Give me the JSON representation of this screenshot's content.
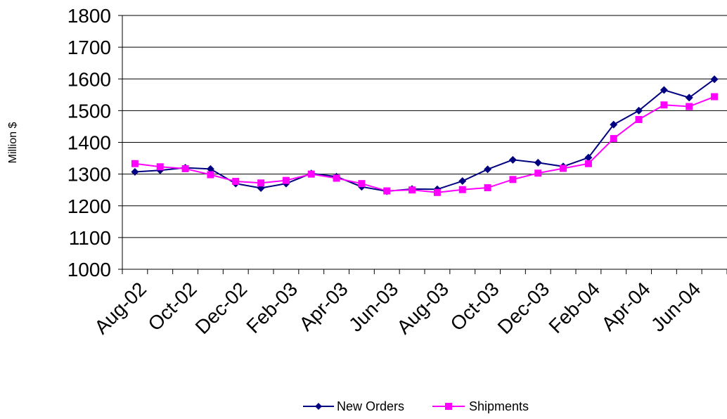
{
  "chart_data": {
    "type": "line",
    "title": "",
    "xlabel": "",
    "ylabel": "Million $",
    "ylim": [
      1000,
      1800
    ],
    "y_ticks": [
      "1000",
      "1100",
      "1200",
      "1300",
      "1400",
      "1500",
      "1600",
      "1700",
      "1800"
    ],
    "x_tick_labels": [
      "Aug-02",
      "Oct-02",
      "Dec-02",
      "Feb-03",
      "Apr-03",
      "Jun-03",
      "Aug-03",
      "Oct-03",
      "Dec-03",
      "Feb-04",
      "Apr-04",
      "Jun-04"
    ],
    "x": [
      "Aug-02",
      "Sep-02",
      "Oct-02",
      "Nov-02",
      "Dec-02",
      "Jan-03",
      "Feb-03",
      "Mar-03",
      "Apr-03",
      "May-03",
      "Jun-03",
      "Jul-03",
      "Aug-03",
      "Sep-03",
      "Oct-03",
      "Nov-03",
      "Dec-03",
      "Jan-04",
      "Feb-04",
      "Mar-04",
      "Apr-04",
      "May-04",
      "Jun-04",
      "Jul-04"
    ],
    "grid": true,
    "legend_position": "bottom",
    "series": [
      {
        "name": "New Orders",
        "color": "#000080",
        "marker": "diamond",
        "values": [
          1307,
          1312,
          1320,
          1316,
          1270,
          1256,
          1270,
          1302,
          1292,
          1260,
          1246,
          1253,
          1252,
          1278,
          1315,
          1345,
          1336,
          1324,
          1352,
          1456,
          1500,
          1565,
          1541,
          1599
        ]
      },
      {
        "name": "Shipments",
        "color": "#FF00FF",
        "marker": "square",
        "values": [
          1333,
          1323,
          1317,
          1298,
          1277,
          1272,
          1280,
          1300,
          1287,
          1270,
          1247,
          1250,
          1242,
          1251,
          1257,
          1283,
          1303,
          1318,
          1333,
          1412,
          1472,
          1518,
          1513,
          1544
        ]
      }
    ]
  }
}
